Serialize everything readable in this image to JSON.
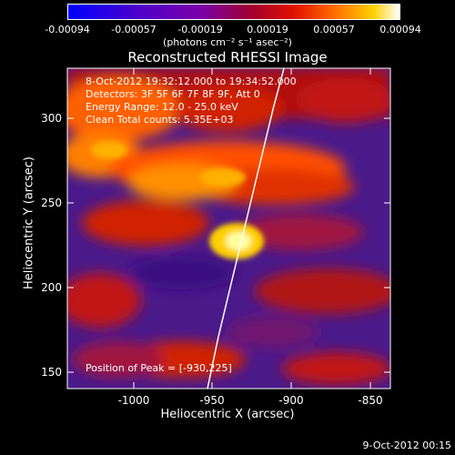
{
  "colorbar": {
    "ticks": [
      "-0.00094",
      "-0.00057",
      "-0.00019",
      "0.00019",
      "0.00057",
      "0.00094"
    ],
    "unit_label": "(photons cm⁻² s⁻¹ asec⁻²)"
  },
  "title": "Reconstructed RHESSI Image",
  "annotations": {
    "time": "8-Oct-2012 19:32:12.000 to 19:34:52.000",
    "detectors": "Detectors: 3F 5F 6F 7F 8F 9F, Att 0",
    "energy": "Energy Range: 12.0 - 25.0 keV",
    "clean": "Clean     Total counts: 5.35E+03",
    "peak": "Position of Peak = [-930,225]"
  },
  "axes": {
    "xlabel": "Heliocentric X (arcsec)",
    "ylabel": "Heliocentric Y (arcsec)",
    "xticks": [
      "-1000",
      "-950",
      "-900",
      "-850"
    ],
    "yticks": [
      "300",
      "250",
      "200",
      "150"
    ],
    "xlim": [
      -1035,
      -840
    ],
    "ylim": [
      135,
      325
    ]
  },
  "peak": {
    "x": -930,
    "y": 225
  },
  "footer": "9-Oct-2012 00:15",
  "colors": {
    "limb_line": "#ffffff",
    "background": "#000000"
  }
}
